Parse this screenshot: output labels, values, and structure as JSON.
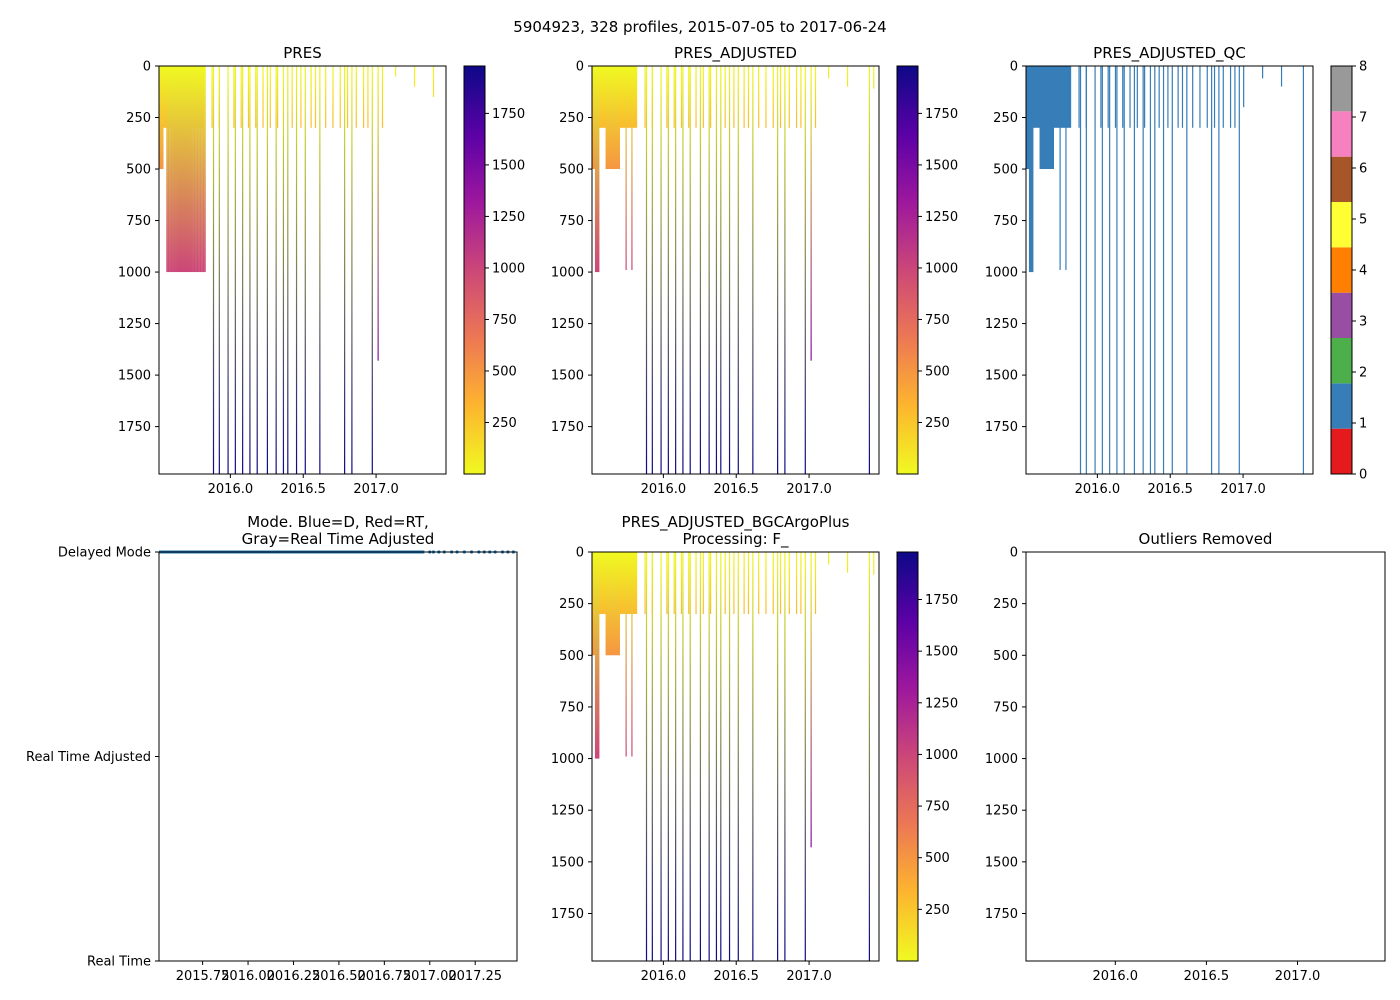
{
  "figure_title": "5904923, 328 profiles, 2015-07-05 to 2017-06-24",
  "colors": {
    "plasma": [
      "#0d0887",
      "#5c01a6",
      "#9c179e",
      "#cc4778",
      "#ed7953",
      "#fdb42f",
      "#f0f921"
    ],
    "qc_blue": "#377eb8",
    "mode_blue": "#1f77b4"
  },
  "chart_data": [
    {
      "id": "pres",
      "type": "heatmap",
      "title": "PRES",
      "xlim": [
        2015.51,
        2017.48
      ],
      "ylim": [
        1980,
        0
      ],
      "xticks": [
        2016.0,
        2016.5,
        2017.0
      ],
      "xticklabels": [
        "2016.0",
        "2016.5",
        "2017.0"
      ],
      "yticks": [
        0,
        250,
        500,
        750,
        1000,
        1250,
        1500,
        1750
      ],
      "yticklabels": [
        "0",
        "250",
        "500",
        "750",
        "1000",
        "1250",
        "1500",
        "1750"
      ],
      "colorbar": {
        "range": [
          0,
          1980
        ],
        "ticks": [
          250,
          500,
          750,
          1000,
          1250,
          1500,
          1750
        ],
        "ticklabels": [
          "250",
          "500",
          "750",
          "1000",
          "1250",
          "1500",
          "1750"
        ],
        "cmap": "plasma_r"
      },
      "profiles": {
        "fill": {
          "x": [
            2015.51,
            2015.82
          ],
          "depth": 300
        },
        "dense_deep": {
          "x": [
            2015.56,
            2015.82
          ],
          "count": 26,
          "depth": 1000
        },
        "deep": {
          "x": [
            2016.36,
            2016.39,
            2016.45,
            2016.51,
            2016.61,
            2016.78,
            2016.83,
            2016.97
          ],
          "depth": 1980
        },
        "mid": {
          "x": [
            2015.87,
            2015.92,
            2016.02,
            2016.07,
            2016.12,
            2016.17,
            2016.22,
            2016.27,
            2016.32,
            2016.42,
            2016.48,
            2016.55,
            2016.58,
            2016.65,
            2016.7,
            2016.75,
            2016.8,
            2016.86,
            2016.91,
            2016.94,
            2017.04
          ],
          "depth": 300
        },
        "long_deep": {
          "x": [
            2015.88,
            2015.92,
            2015.98,
            2016.03,
            2016.08,
            2016.13,
            2016.18,
            2016.25,
            2016.31
          ],
          "depth": 1980
        },
        "extras": [
          {
            "x": 2017.01,
            "depth": 1430
          },
          {
            "x": 2017.13,
            "depth": 50
          },
          {
            "x": 2017.26,
            "depth": 100
          },
          {
            "x": 2017.39,
            "depth": 150
          }
        ]
      }
    },
    {
      "id": "pres_adjusted",
      "type": "heatmap",
      "title": "PRES_ADJUSTED",
      "xlim": [
        2015.51,
        2017.48
      ],
      "ylim": [
        1980,
        0
      ],
      "xticks": [
        2016.0,
        2016.5,
        2017.0
      ],
      "xticklabels": [
        "2016.0",
        "2016.5",
        "2017.0"
      ],
      "yticks": [
        0,
        250,
        500,
        750,
        1000,
        1250,
        1500,
        1750
      ],
      "yticklabels": [
        "0",
        "250",
        "500",
        "750",
        "1000",
        "1250",
        "1500",
        "1750"
      ],
      "colorbar": {
        "range": [
          0,
          1980
        ],
        "ticks": [
          250,
          500,
          750,
          1000,
          1250,
          1500,
          1750
        ],
        "ticklabels": [
          "250",
          "500",
          "750",
          "1000",
          "1250",
          "1500",
          "1750"
        ],
        "cmap": "plasma_r"
      },
      "profiles": {
        "fill": {
          "x": [
            2015.51,
            2015.82
          ],
          "depth": 300
        },
        "dense_deep": {
          "x": [
            2015.53,
            2015.55
          ],
          "count": 4,
          "depth": 1000
        },
        "deep": {
          "x": [
            2016.36,
            2016.39,
            2016.45,
            2016.51,
            2016.61,
            2016.78,
            2016.83,
            2016.97
          ],
          "depth": 1980
        },
        "mid": {
          "x": [
            2015.87,
            2015.92,
            2016.02,
            2016.07,
            2016.12,
            2016.17,
            2016.22,
            2016.27,
            2016.32,
            2016.42,
            2016.48,
            2016.55,
            2016.58,
            2016.65,
            2016.7,
            2016.75,
            2016.8,
            2016.86,
            2016.91,
            2016.94,
            2017.04
          ],
          "depth": 300
        },
        "long_deep": {
          "x": [
            2015.88,
            2015.92,
            2015.98,
            2016.03,
            2016.08,
            2016.13,
            2016.18,
            2016.25,
            2016.31,
            2017.41
          ],
          "depth": 1980
        },
        "extras": [
          {
            "x": 2015.74,
            "depth": 990
          },
          {
            "x": 2015.78,
            "depth": 990
          },
          {
            "x": 2017.01,
            "depth": 1430
          },
          {
            "x": 2017.13,
            "depth": 60
          },
          {
            "x": 2017.26,
            "depth": 100
          },
          {
            "x": 2017.44,
            "depth": 110
          }
        ]
      }
    },
    {
      "id": "pres_adjusted_qc",
      "type": "heatmap",
      "title": "PRES_ADJUSTED_QC",
      "xlim": [
        2015.51,
        2017.48
      ],
      "ylim": [
        1980,
        0
      ],
      "xticks": [
        2016.0,
        2016.5,
        2017.0
      ],
      "xticklabels": [
        "2016.0",
        "2016.5",
        "2017.0"
      ],
      "yticks": [
        0,
        250,
        500,
        750,
        1000,
        1250,
        1500,
        1750
      ],
      "yticklabels": [
        "0",
        "250",
        "500",
        "750",
        "1000",
        "1250",
        "1500",
        "1750"
      ],
      "colorbar": {
        "range": [
          0,
          8
        ],
        "ticks": [
          0,
          1,
          2,
          3,
          4,
          5,
          6,
          7,
          8
        ],
        "ticklabels": [
          "0",
          "1",
          "2",
          "3",
          "4",
          "5",
          "6",
          "7",
          "8"
        ],
        "cmap": "qc",
        "qc_colors": [
          "#e41a1c",
          "#377eb8",
          "#4daf4a",
          "#984ea3",
          "#ff7f00",
          "#ffff33",
          "#a65628",
          "#f781bf",
          "#999999"
        ]
      },
      "profiles": {
        "fill": {
          "x": [
            2015.51,
            2015.82
          ],
          "depth": 300
        },
        "dense_deep": {
          "x": [
            2015.53,
            2015.55
          ],
          "count": 4,
          "depth": 1000
        },
        "deep": {
          "x": [
            2016.36,
            2016.39,
            2016.45,
            2016.51,
            2016.61,
            2016.78,
            2016.83,
            2016.97
          ],
          "depth": 1980
        },
        "mid": {
          "x": [
            2015.87,
            2015.92,
            2016.02,
            2016.07,
            2016.12,
            2016.17,
            2016.22,
            2016.27,
            2016.32,
            2016.42,
            2016.48,
            2016.55,
            2016.58,
            2016.65,
            2016.7,
            2016.75,
            2016.8,
            2016.86,
            2016.91,
            2016.94
          ],
          "depth": 300
        },
        "long_deep": {
          "x": [
            2015.88,
            2015.92,
            2015.98,
            2016.03,
            2016.08,
            2016.13,
            2016.18,
            2016.25,
            2016.31,
            2017.41
          ],
          "depth": 1980
        },
        "extras": [
          {
            "x": 2015.74,
            "depth": 990
          },
          {
            "x": 2015.78,
            "depth": 990
          },
          {
            "x": 2017.0,
            "depth": 200
          },
          {
            "x": 2017.13,
            "depth": 60
          },
          {
            "x": 2017.26,
            "depth": 100
          }
        ]
      }
    },
    {
      "id": "mode",
      "type": "scatter",
      "title_lines": [
        "Mode. Blue=D, Red=RT,",
        "Gray=Real Time Adjusted"
      ],
      "xlim": [
        2015.51,
        2017.48
      ],
      "ylim": [
        0,
        1.1
      ],
      "xticks": [
        2015.75,
        2016.0,
        2016.25,
        2016.5,
        2016.75,
        2017.0,
        2017.25
      ],
      "xticklabels": [
        "2015.75",
        "2016.00",
        "2016.25",
        "2016.50",
        "2016.75",
        "2017.00",
        "2017.25"
      ],
      "yticks": [
        1.1,
        0.55,
        0
      ],
      "yticklabels": [
        "Delayed Mode",
        "Real Time Adjusted",
        "Real Time"
      ],
      "series": [
        {
          "name": "Delayed Mode",
          "y": 1.1,
          "x_dense": [
            2015.51,
            2016.97
          ],
          "x_sparse": [
            2017.0,
            2017.02,
            2017.05,
            2017.08,
            2017.12,
            2017.15,
            2017.19,
            2017.23,
            2017.27,
            2017.3,
            2017.33,
            2017.36,
            2017.4,
            2017.43,
            2017.46
          ]
        }
      ]
    },
    {
      "id": "bgc",
      "type": "heatmap",
      "title_lines": [
        "PRES_ADJUSTED_BGCArgoPlus",
        "Processing: F_"
      ],
      "xlim": [
        2015.51,
        2017.48
      ],
      "ylim": [
        1980,
        0
      ],
      "xticks": [
        2016.0,
        2016.5,
        2017.0
      ],
      "xticklabels": [
        "2016.0",
        "2016.5",
        "2017.0"
      ],
      "yticks": [
        0,
        250,
        500,
        750,
        1000,
        1250,
        1500,
        1750
      ],
      "yticklabels": [
        "0",
        "250",
        "500",
        "750",
        "1000",
        "1250",
        "1500",
        "1750"
      ],
      "colorbar": {
        "range": [
          0,
          1980
        ],
        "ticks": [
          250,
          500,
          750,
          1000,
          1250,
          1500,
          1750
        ],
        "ticklabels": [
          "250",
          "500",
          "750",
          "1000",
          "1250",
          "1500",
          "1750"
        ],
        "cmap": "plasma_r"
      },
      "profiles": {
        "fill": {
          "x": [
            2015.51,
            2015.82
          ],
          "depth": 300
        },
        "dense_deep": {
          "x": [
            2015.53,
            2015.55
          ],
          "count": 4,
          "depth": 1000
        },
        "deep": {
          "x": [
            2016.36,
            2016.39,
            2016.45,
            2016.51,
            2016.61,
            2016.78,
            2016.83,
            2016.97
          ],
          "depth": 1980
        },
        "mid": {
          "x": [
            2015.87,
            2015.92,
            2016.02,
            2016.07,
            2016.12,
            2016.17,
            2016.22,
            2016.27,
            2016.32,
            2016.42,
            2016.48,
            2016.55,
            2016.58,
            2016.65,
            2016.7,
            2016.75,
            2016.8,
            2016.86,
            2016.91,
            2016.94,
            2017.04
          ],
          "depth": 300
        },
        "long_deep": {
          "x": [
            2015.88,
            2015.92,
            2015.98,
            2016.03,
            2016.08,
            2016.13,
            2016.18,
            2016.25,
            2016.31,
            2017.41
          ],
          "depth": 1980
        },
        "extras": [
          {
            "x": 2015.74,
            "depth": 990
          },
          {
            "x": 2015.78,
            "depth": 990
          },
          {
            "x": 2017.01,
            "depth": 1430
          },
          {
            "x": 2017.13,
            "depth": 60
          },
          {
            "x": 2017.26,
            "depth": 100
          },
          {
            "x": 2017.44,
            "depth": 110
          }
        ]
      }
    },
    {
      "id": "outliers",
      "type": "scatter",
      "title": "Outliers Removed",
      "xlim": [
        2015.51,
        2017.48
      ],
      "ylim": [
        1980,
        0
      ],
      "xticks": [
        2016.0,
        2016.5,
        2017.0
      ],
      "xticklabels": [
        "2016.0",
        "2016.5",
        "2017.0"
      ],
      "yticks": [
        0,
        250,
        500,
        750,
        1000,
        1250,
        1500,
        1750
      ],
      "yticklabels": [
        "0",
        "250",
        "500",
        "750",
        "1000",
        "1250",
        "1500",
        "1750"
      ],
      "series": []
    }
  ]
}
